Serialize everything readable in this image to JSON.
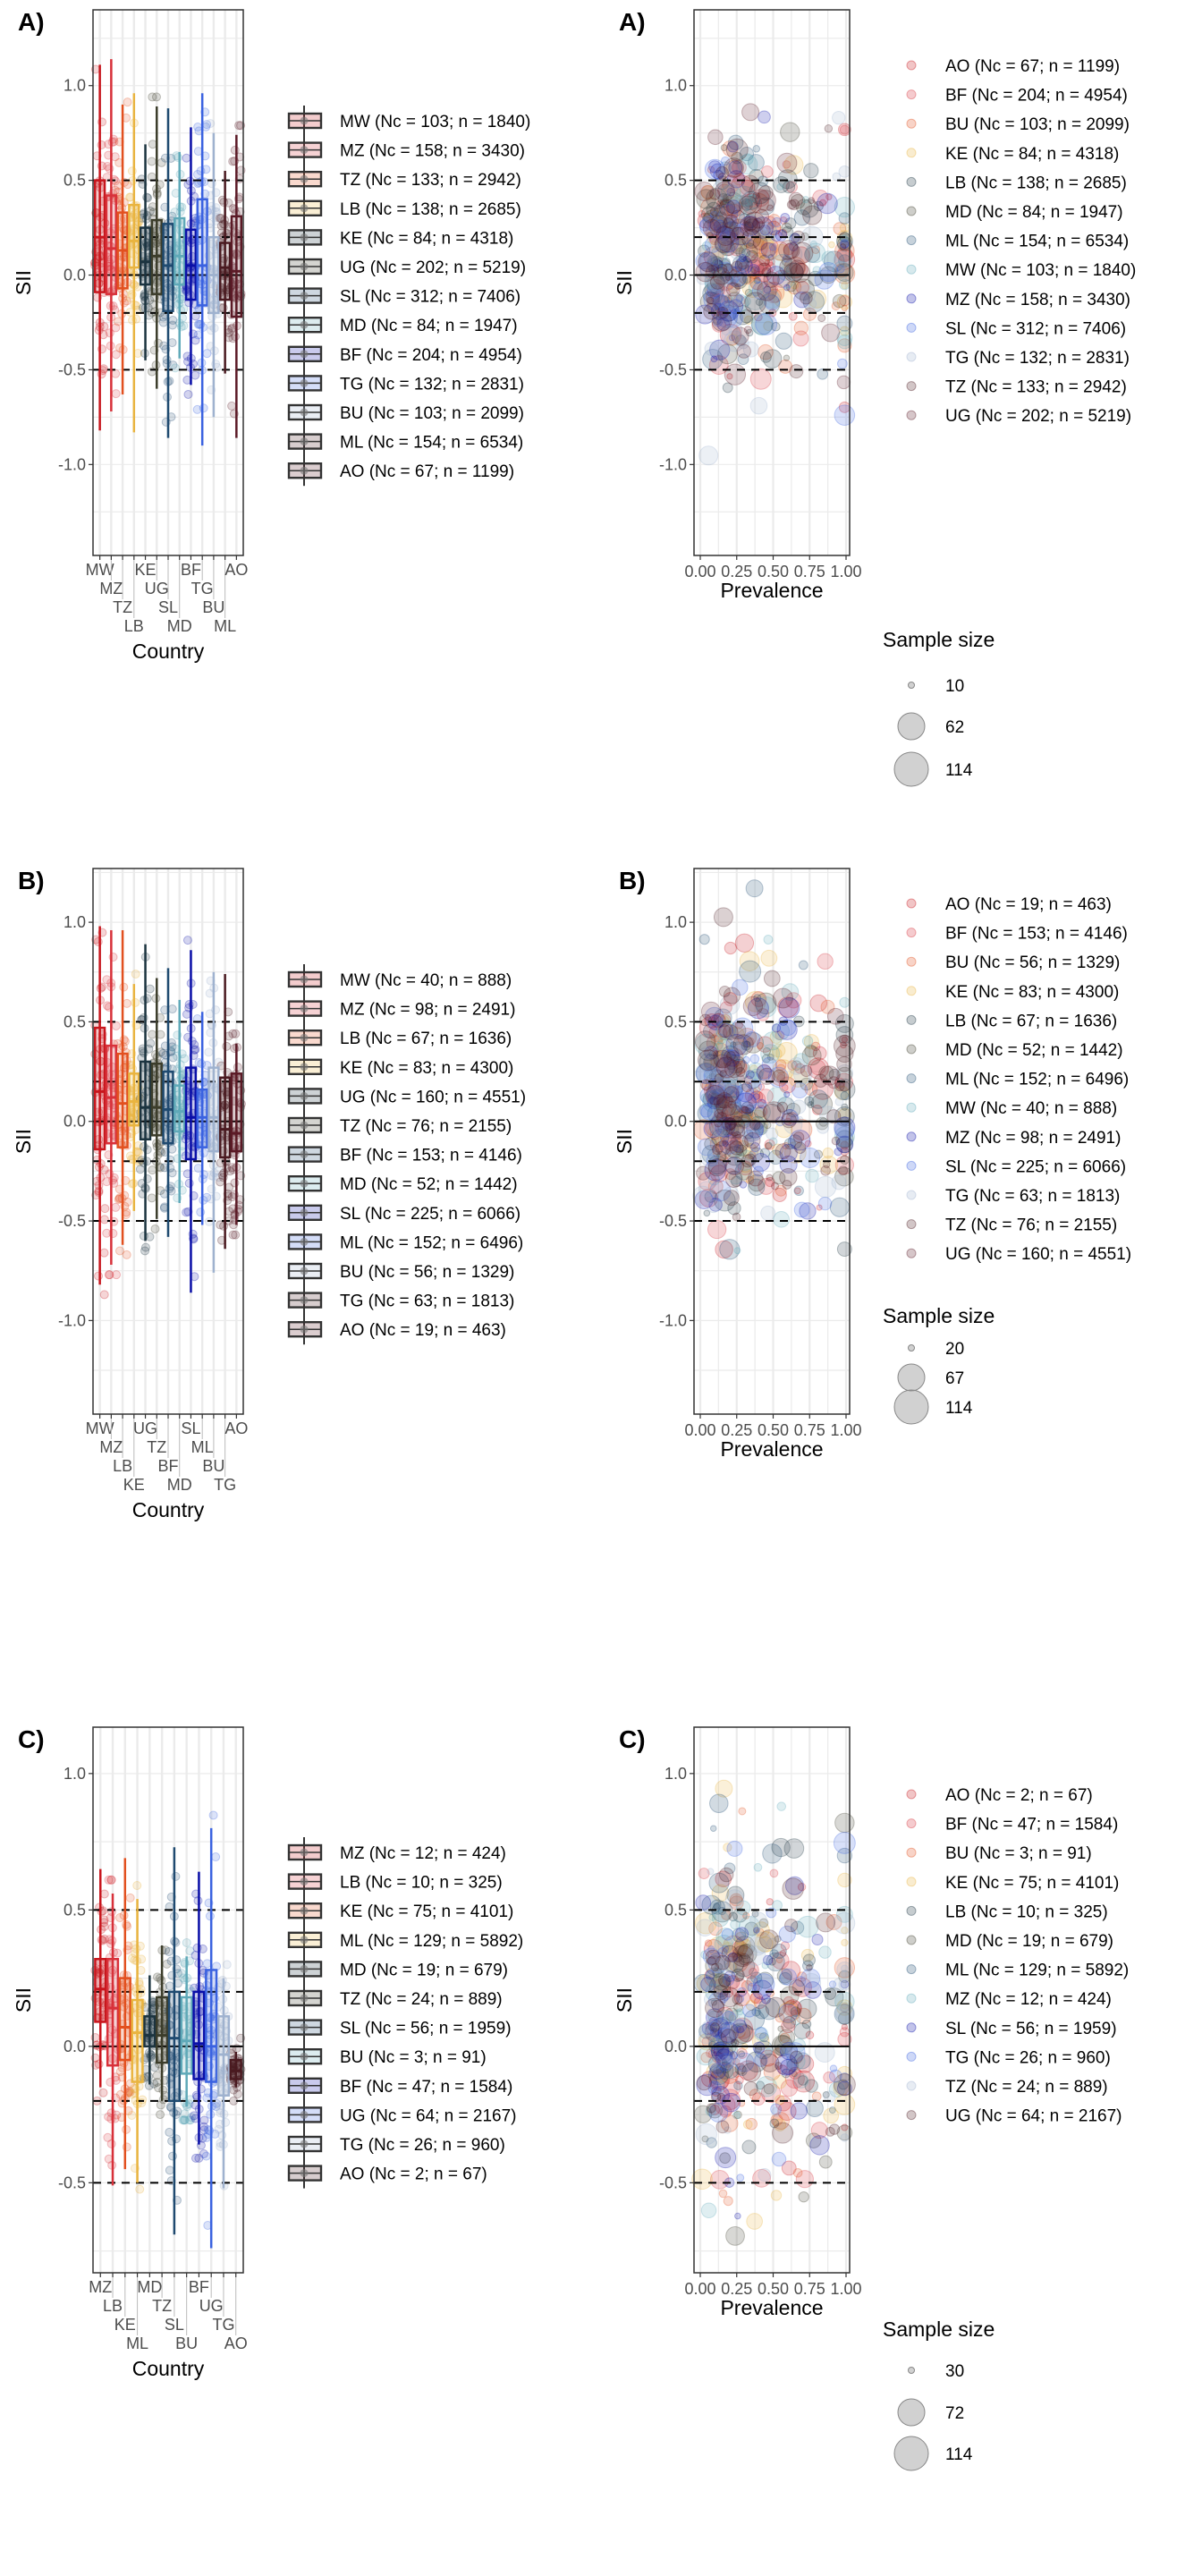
{
  "country_colors": [
    "#c8161d",
    "#d8313a",
    "#e2501f",
    "#e9b440",
    "#1c3440",
    "#3c3d2b",
    "#1f4a70",
    "#5fa9b8",
    "#0a0fa8",
    "#3a62e0",
    "#9fb2cf",
    "#4a1a20",
    "#5b1a26"
  ],
  "chart_data": [
    {
      "panel_label": "A)",
      "type": "box",
      "xlabel": "Country",
      "ylabel": "SII",
      "ylim": [
        -1.48,
        1.4
      ],
      "yticks": [
        "-1.0",
        "-0.5",
        "0.0",
        "0.5",
        "1.0"
      ],
      "reference_lines": {
        "dashed": [
          -0.5,
          -0.2,
          0.2,
          0.5
        ],
        "solid": [
          0
        ]
      },
      "categories": [
        "MW",
        "MZ",
        "TZ",
        "LB",
        "KE",
        "UG",
        "SL",
        "MD",
        "BF",
        "TG",
        "BU",
        "ML",
        "AO"
      ],
      "legend": [
        "MW (Nc = 103; n = 1840)",
        "MZ (Nc = 158; n = 3430)",
        "TZ (Nc = 133; n = 2942)",
        "LB (Nc = 138; n = 2685)",
        "KE (Nc = 84; n = 4318)",
        "UG (Nc = 202; n = 5219)",
        "SL (Nc = 312; n = 7406)",
        "MD (Nc = 84; n = 1947)",
        "BF (Nc = 204; n = 4954)",
        "TG (Nc = 132; n = 2831)",
        "BU (Nc = 103; n = 2099)",
        "ML (Nc = 154; n = 6534)",
        "AO (Nc = 67; n = 1199)"
      ],
      "boxes": [
        {
          "country": "MW",
          "median": 0.2,
          "q1": -0.09,
          "q3": 0.5,
          "whisker_low": -0.82,
          "whisker_high": 1.11
        },
        {
          "country": "MZ",
          "median": 0.14,
          "q1": -0.1,
          "q3": 0.42,
          "whisker_low": -0.72,
          "whisker_high": 1.14
        },
        {
          "country": "TZ",
          "median": 0.13,
          "q1": -0.07,
          "q3": 0.33,
          "whisker_low": -0.63,
          "whisker_high": 0.9
        },
        {
          "country": "LB",
          "median": 0.18,
          "q1": 0.04,
          "q3": 0.37,
          "whisker_low": -0.83,
          "whisker_high": 0.96
        },
        {
          "country": "KE",
          "median": 0.07,
          "q1": -0.05,
          "q3": 0.25,
          "whisker_low": -0.45,
          "whisker_high": 0.69
        },
        {
          "country": "UG",
          "median": 0.1,
          "q1": -0.1,
          "q3": 0.29,
          "whisker_low": -0.6,
          "whisker_high": 0.89
        },
        {
          "country": "SL",
          "median": 0.05,
          "q1": -0.19,
          "q3": 0.27,
          "whisker_low": -0.86,
          "whisker_high": 0.88
        },
        {
          "country": "MD",
          "median": 0.1,
          "q1": -0.05,
          "q3": 0.3,
          "whisker_low": -0.44,
          "whisker_high": 0.65
        },
        {
          "country": "BF",
          "median": 0.05,
          "q1": -0.13,
          "q3": 0.24,
          "whisker_low": -0.58,
          "whisker_high": 0.78
        },
        {
          "country": "TG",
          "median": 0.05,
          "q1": -0.16,
          "q3": 0.4,
          "whisker_low": -0.9,
          "whisker_high": 0.96
        },
        {
          "country": "BU",
          "median": 0.0,
          "q1": -0.2,
          "q3": 0.2,
          "whisker_low": -0.75,
          "whisker_high": 0.75
        },
        {
          "country": "ML",
          "median": 0.04,
          "q1": -0.13,
          "q3": 0.17,
          "whisker_low": -0.52,
          "whisker_high": 0.55
        },
        {
          "country": "AO",
          "median": 0.02,
          "q1": -0.22,
          "q3": 0.31,
          "whisker_low": -0.86,
          "whisker_high": 0.74
        }
      ]
    },
    {
      "panel_label": "A)",
      "type": "scatter",
      "xlabel": "Prevalence",
      "ylabel": "SII",
      "xlim": [
        0,
        1
      ],
      "xticks": [
        "0.00",
        "0.25",
        "0.50",
        "0.75",
        "1.00"
      ],
      "ylim": [
        -1.48,
        1.4
      ],
      "yticks": [
        "-1.0",
        "-0.5",
        "0.0",
        "0.5",
        "1.0"
      ],
      "reference_lines": {
        "dashed": [
          -0.5,
          -0.2,
          0.2,
          0.5
        ],
        "solid": [
          0
        ]
      },
      "legend": [
        "AO (Nc = 67; n = 1199)",
        "BF (Nc = 204; n = 4954)",
        "BU (Nc = 103; n = 2099)",
        "KE (Nc = 84; n = 4318)",
        "LB (Nc = 138; n = 2685)",
        "MD (Nc = 84; n = 1947)",
        "ML (Nc = 154; n = 6534)",
        "MW (Nc = 103; n = 1840)",
        "MZ (Nc = 158; n = 3430)",
        "SL (Nc = 312; n = 7406)",
        "TG (Nc = 132; n = 2831)",
        "TZ (Nc = 133; n = 2942)",
        "UG (Nc = 202; n = 5219)"
      ],
      "size_legend": {
        "title": "Sample size",
        "values": [
          "10",
          "62",
          "114"
        ]
      }
    },
    {
      "panel_label": "B)",
      "type": "box",
      "xlabel": "Country",
      "ylabel": "SII",
      "ylim": [
        -1.47,
        1.27
      ],
      "yticks": [
        "-1.0",
        "-0.5",
        "0.0",
        "0.5",
        "1.0"
      ],
      "reference_lines": {
        "dashed": [
          -0.5,
          -0.2,
          0.2,
          0.5
        ],
        "solid": [
          0
        ]
      },
      "categories": [
        "MW",
        "MZ",
        "LB",
        "KE",
        "UG",
        "TZ",
        "BF",
        "MD",
        "SL",
        "ML",
        "BU",
        "TG",
        "AO"
      ],
      "legend": [
        "MW (Nc = 40; n = 888)",
        "MZ (Nc = 98; n = 2491)",
        "LB (Nc = 67; n = 1636)",
        "KE (Nc = 83; n = 4300)",
        "UG (Nc = 160; n = 4551)",
        "TZ (Nc = 76; n = 2155)",
        "BF (Nc = 153; n = 4146)",
        "MD (Nc = 52; n = 1442)",
        "SL (Nc = 225; n = 6066)",
        "ML (Nc = 152; n = 6496)",
        "BU (Nc = 56; n = 1329)",
        "TG (Nc = 63; n = 1813)",
        "AO (Nc = 19; n = 463)"
      ],
      "boxes": [
        {
          "country": "MW",
          "median": 0.15,
          "q1": -0.14,
          "q3": 0.47,
          "whisker_low": -0.82,
          "whisker_high": 0.98
        },
        {
          "country": "MZ",
          "median": 0.12,
          "q1": -0.11,
          "q3": 0.38,
          "whisker_low": -0.72,
          "whisker_high": 0.96
        },
        {
          "country": "LB",
          "median": 0.09,
          "q1": -0.13,
          "q3": 0.34,
          "whisker_low": -0.62,
          "whisker_high": 0.96
        },
        {
          "country": "KE",
          "median": 0.1,
          "q1": -0.02,
          "q3": 0.24,
          "whisker_low": -0.45,
          "whisker_high": 0.69
        },
        {
          "country": "UG",
          "median": 0.07,
          "q1": -0.09,
          "q3": 0.3,
          "whisker_low": -0.6,
          "whisker_high": 0.89
        },
        {
          "country": "TZ",
          "median": 0.07,
          "q1": -0.07,
          "q3": 0.29,
          "whisker_low": -0.49,
          "whisker_high": 0.72
        },
        {
          "country": "BF",
          "median": 0.06,
          "q1": -0.11,
          "q3": 0.25,
          "whisker_low": -0.58,
          "whisker_high": 0.77
        },
        {
          "country": "MD",
          "median": 0.05,
          "q1": -0.05,
          "q3": 0.18,
          "whisker_low": -0.41,
          "whisker_high": 0.61
        },
        {
          "country": "SL",
          "median": 0.02,
          "q1": -0.19,
          "q3": 0.27,
          "whisker_low": -0.86,
          "whisker_high": 0.86
        },
        {
          "country": "ML",
          "median": 0.02,
          "q1": -0.13,
          "q3": 0.16,
          "whisker_low": -0.52,
          "whisker_high": 0.55
        },
        {
          "country": "BU",
          "median": 0.02,
          "q1": -0.15,
          "q3": 0.27,
          "whisker_low": -0.76,
          "whisker_high": 0.75
        },
        {
          "country": "TG",
          "median": -0.04,
          "q1": -0.18,
          "q3": 0.22,
          "whisker_low": -0.64,
          "whisker_high": 0.74
        },
        {
          "country": "AO",
          "median": -0.06,
          "q1": -0.15,
          "q3": 0.24,
          "whisker_low": -0.52,
          "whisker_high": 0.39
        }
      ]
    },
    {
      "panel_label": "B)",
      "type": "scatter",
      "xlabel": "Prevalence",
      "ylabel": "SII",
      "xlim": [
        0,
        1
      ],
      "xticks": [
        "0.00",
        "0.25",
        "0.50",
        "0.75",
        "1.00"
      ],
      "ylim": [
        -1.47,
        1.27
      ],
      "yticks": [
        "-1.0",
        "-0.5",
        "0.0",
        "0.5",
        "1.0"
      ],
      "reference_lines": {
        "dashed": [
          -0.5,
          -0.2,
          0.2,
          0.5
        ],
        "solid": [
          0
        ]
      },
      "legend": [
        "AO (Nc = 19; n = 463)",
        "BF (Nc = 153; n = 4146)",
        "BU (Nc = 56; n = 1329)",
        "KE (Nc = 83; n = 4300)",
        "LB (Nc = 67; n = 1636)",
        "MD (Nc = 52; n = 1442)",
        "ML (Nc = 152; n = 6496)",
        "MW (Nc = 40; n = 888)",
        "MZ (Nc = 98; n = 2491)",
        "SL (Nc = 225; n = 6066)",
        "TG (Nc = 63; n = 1813)",
        "TZ (Nc = 76; n = 2155)",
        "UG (Nc = 160; n = 4551)"
      ],
      "size_legend": {
        "title": "Sample size",
        "values": [
          "20",
          "67",
          "114"
        ]
      }
    },
    {
      "panel_label": "C)",
      "type": "box",
      "xlabel": "Country",
      "ylabel": "SII",
      "ylim": [
        -0.83,
        1.17
      ],
      "yticks": [
        "-0.5",
        "0.0",
        "0.5",
        "1.0"
      ],
      "reference_lines": {
        "dashed": [
          -0.5,
          -0.2,
          0.2,
          0.5
        ],
        "solid": [
          0
        ]
      },
      "categories": [
        "MZ",
        "LB",
        "KE",
        "ML",
        "MD",
        "TZ",
        "SL",
        "BU",
        "BF",
        "UG",
        "TG",
        "AO"
      ],
      "legend": [
        "MZ (Nc = 12; n = 424)",
        "LB (Nc = 10; n = 325)",
        "KE (Nc = 75; n = 4101)",
        "ML (Nc = 129; n = 5892)",
        "MD (Nc = 19; n = 679)",
        "TZ (Nc = 24; n = 889)",
        "SL (Nc = 56; n = 1959)",
        "BU (Nc = 3; n = 91)",
        "BF (Nc = 47; n = 1584)",
        "UG (Nc = 64; n = 2167)",
        "TG (Nc = 26; n = 960)",
        "AO (Nc = 2; n = 67)"
      ],
      "boxes": [
        {
          "country": "MZ",
          "median": 0.21,
          "q1": 0.09,
          "q3": 0.32,
          "whisker_low": -0.15,
          "whisker_high": 0.65
        },
        {
          "country": "LB",
          "median": 0.14,
          "q1": -0.07,
          "q3": 0.32,
          "whisker_low": -0.51,
          "whisker_high": 0.56
        },
        {
          "country": "KE",
          "median": 0.07,
          "q1": -0.05,
          "q3": 0.25,
          "whisker_low": -0.45,
          "whisker_high": 0.69
        },
        {
          "country": "ML",
          "median": 0.05,
          "q1": -0.13,
          "q3": 0.17,
          "whisker_low": -0.5,
          "whisker_high": 0.54
        },
        {
          "country": "MD",
          "median": 0.04,
          "q1": 0.0,
          "q3": 0.11,
          "whisker_low": -0.14,
          "whisker_high": 0.26
        },
        {
          "country": "TZ",
          "median": 0.04,
          "q1": -0.06,
          "q3": 0.18,
          "whisker_low": -0.2,
          "whisker_high": 0.37
        },
        {
          "country": "SL",
          "median": 0.03,
          "q1": -0.2,
          "q3": 0.2,
          "whisker_low": -0.69,
          "whisker_high": 0.73
        },
        {
          "country": "BU",
          "median": 0.02,
          "q1": -0.1,
          "q3": 0.18,
          "whisker_low": -0.22,
          "whisker_high": 0.33
        },
        {
          "country": "BF",
          "median": 0.01,
          "q1": -0.12,
          "q3": 0.2,
          "whisker_low": -0.36,
          "whisker_high": 0.64
        },
        {
          "country": "UG",
          "median": 0.0,
          "q1": -0.13,
          "q3": 0.28,
          "whisker_low": -0.74,
          "whisker_high": 0.8
        },
        {
          "country": "TG",
          "median": -0.03,
          "q1": -0.18,
          "q3": 0.11,
          "whisker_low": -0.52,
          "whisker_high": 0.25
        },
        {
          "country": "AO",
          "median": -0.09,
          "q1": -0.12,
          "q3": -0.05,
          "whisker_low": -0.15,
          "whisker_high": -0.02
        }
      ]
    },
    {
      "panel_label": "C)",
      "type": "scatter",
      "xlabel": "Prevalence",
      "ylabel": "SII",
      "xlim": [
        0,
        1
      ],
      "xticks": [
        "0.00",
        "0.25",
        "0.50",
        "0.75",
        "1.00"
      ],
      "ylim": [
        -0.83,
        1.17
      ],
      "yticks": [
        "-0.5",
        "0.0",
        "0.5",
        "1.0"
      ],
      "reference_lines": {
        "dashed": [
          -0.5,
          -0.2,
          0.2,
          0.5
        ],
        "solid": [
          0
        ]
      },
      "legend": [
        "AO (Nc = 2; n = 67)",
        "BF (Nc = 47; n = 1584)",
        "BU (Nc = 3; n = 91)",
        "KE (Nc = 75; n = 4101)",
        "LB (Nc = 10; n = 325)",
        "MD (Nc = 19; n = 679)",
        "ML (Nc = 129; n = 5892)",
        "MZ (Nc = 12; n = 424)",
        "SL (Nc = 56; n = 1959)",
        "TG (Nc = 26; n = 960)",
        "TZ (Nc = 24; n = 889)",
        "UG (Nc = 64; n = 2167)"
      ],
      "size_legend": {
        "title": "Sample size",
        "values": [
          "30",
          "72",
          "114"
        ]
      }
    }
  ]
}
